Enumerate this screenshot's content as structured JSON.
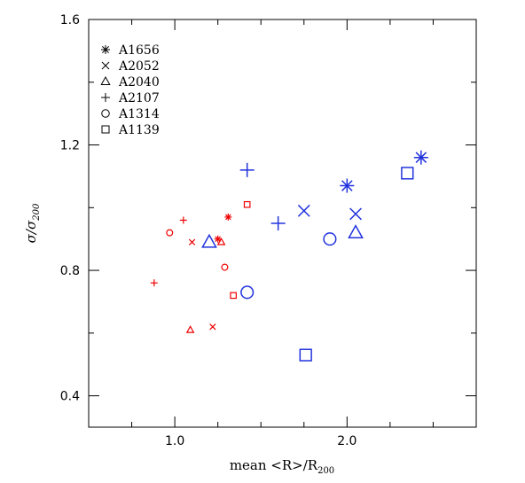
{
  "chart_data": {
    "type": "scatter",
    "xlabel_main": "mean <R>/R",
    "xlabel_sub": "200",
    "ylabel_main": "σ/σ",
    "ylabel_sub": "200",
    "xlim": [
      0.5,
      2.75
    ],
    "ylim": [
      0.3,
      1.6
    ],
    "x_ticks": [
      {
        "value": 1.0,
        "label": "1.0"
      },
      {
        "value": 2.0,
        "label": "2.0"
      }
    ],
    "x_minor_ticks": [
      0.75,
      1.25,
      1.5,
      1.75,
      2.25,
      2.5
    ],
    "y_ticks": [
      {
        "value": 0.4,
        "label": "0.4"
      },
      {
        "value": 0.8,
        "label": "0.8"
      },
      {
        "value": 1.2,
        "label": "1.2"
      },
      {
        "value": 1.6,
        "label": "1.6"
      }
    ],
    "y_minor_ticks": [
      0.6,
      1.0,
      1.4
    ],
    "grid": false,
    "legend_placement": "top-left",
    "colors": {
      "red": "#ee0000",
      "blue": "#2233dd",
      "axis": "#000000"
    },
    "series": [
      {
        "name": "A1656",
        "marker": "asterisk",
        "points": [
          {
            "x": 1.25,
            "y": 0.9,
            "color": "red",
            "size": "small"
          },
          {
            "x": 1.31,
            "y": 0.97,
            "color": "red",
            "size": "small"
          },
          {
            "x": 2.0,
            "y": 1.07,
            "color": "blue",
            "size": "large"
          },
          {
            "x": 2.43,
            "y": 1.16,
            "color": "blue",
            "size": "large"
          }
        ]
      },
      {
        "name": "A2052",
        "marker": "cross",
        "points": [
          {
            "x": 1.1,
            "y": 0.89,
            "color": "red",
            "size": "small"
          },
          {
            "x": 1.22,
            "y": 0.62,
            "color": "red",
            "size": "small"
          },
          {
            "x": 1.75,
            "y": 0.99,
            "color": "blue",
            "size": "large"
          },
          {
            "x": 2.05,
            "y": 0.98,
            "color": "blue",
            "size": "large"
          }
        ]
      },
      {
        "name": "A2040",
        "marker": "triangle",
        "points": [
          {
            "x": 1.09,
            "y": 0.61,
            "color": "red",
            "size": "small"
          },
          {
            "x": 1.27,
            "y": 0.89,
            "color": "red",
            "size": "small"
          },
          {
            "x": 1.2,
            "y": 0.89,
            "color": "blue",
            "size": "large"
          },
          {
            "x": 2.05,
            "y": 0.92,
            "color": "blue",
            "size": "large"
          }
        ]
      },
      {
        "name": "A2107",
        "marker": "plus",
        "points": [
          {
            "x": 0.88,
            "y": 0.76,
            "color": "red",
            "size": "small"
          },
          {
            "x": 1.05,
            "y": 0.96,
            "color": "red",
            "size": "small"
          },
          {
            "x": 1.42,
            "y": 1.12,
            "color": "blue",
            "size": "large"
          },
          {
            "x": 1.6,
            "y": 0.95,
            "color": "blue",
            "size": "large"
          }
        ]
      },
      {
        "name": "A1314",
        "marker": "circle",
        "points": [
          {
            "x": 0.97,
            "y": 0.92,
            "color": "red",
            "size": "small"
          },
          {
            "x": 1.29,
            "y": 0.81,
            "color": "red",
            "size": "small"
          },
          {
            "x": 1.42,
            "y": 0.73,
            "color": "blue",
            "size": "large"
          },
          {
            "x": 1.9,
            "y": 0.9,
            "color": "blue",
            "size": "large"
          }
        ]
      },
      {
        "name": "A1139",
        "marker": "square",
        "points": [
          {
            "x": 1.34,
            "y": 0.72,
            "color": "red",
            "size": "small"
          },
          {
            "x": 1.42,
            "y": 1.01,
            "color": "red",
            "size": "small"
          },
          {
            "x": 1.76,
            "y": 0.53,
            "color": "blue",
            "size": "large"
          },
          {
            "x": 2.35,
            "y": 1.11,
            "color": "blue",
            "size": "large"
          }
        ]
      }
    ]
  }
}
